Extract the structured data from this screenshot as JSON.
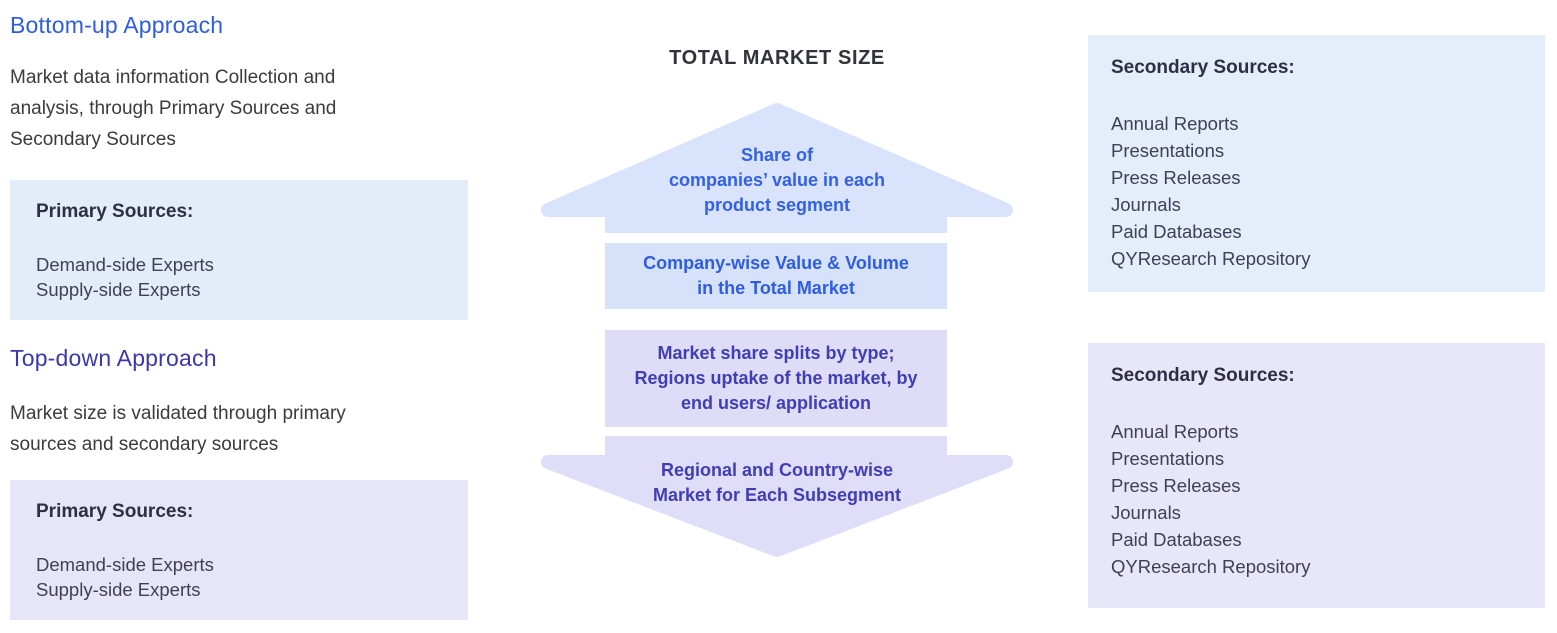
{
  "left_panel": {
    "sections": [
      {
        "heading": "Bottom-up Approach",
        "description_lines": [
          "Market data information Collection and",
          "analysis, through Primary Sources and",
          "Secondary Sources"
        ],
        "box": {
          "heading": "Primary Sources:",
          "items": [
            "Demand-side Experts",
            "Supply-side Experts"
          ]
        }
      },
      {
        "heading": "Top-down Approach",
        "description_lines": [
          "Market size is validated through primary",
          "sources and secondary sources"
        ],
        "box": {
          "heading": "Primary Sources:",
          "items": [
            "Demand-side Experts",
            "Supply-side Experts"
          ]
        }
      }
    ]
  },
  "center_diagram": {
    "title": "TOTAL MARKET SIZE",
    "steps": [
      {
        "shape": "arrow-up",
        "lines": [
          "Share of",
          "companies’ value in each",
          "product segment"
        ]
      },
      {
        "shape": "box",
        "lines": [
          "Company-wise Value & Volume",
          "in the Total Market"
        ]
      },
      {
        "shape": "box",
        "lines": [
          "Market share splits by type;",
          "Regions uptake of the market, by",
          "end users/ application"
        ]
      },
      {
        "shape": "arrow-down",
        "lines": [
          "Regional and Country-wise",
          "Market for Each Subsegment"
        ]
      }
    ]
  },
  "right_panel": {
    "boxes": [
      {
        "heading": "Secondary Sources:",
        "items": [
          "Annual Reports",
          "Presentations",
          "Press Releases",
          "Journals",
          "Paid Databases",
          "QYResearch Repository"
        ]
      },
      {
        "heading": "Secondary Sources:",
        "items": [
          "Annual Reports",
          "Presentations",
          "Press Releases",
          "Journals",
          "Paid Databases",
          "QYResearch Repository"
        ]
      }
    ]
  },
  "colors": {
    "bottom_up_heading": "#2f5de2",
    "top_down_heading": "#3b37ae",
    "body_text": "#3b3b3b",
    "panel_heading_text": "#2e2e45",
    "panel_item_text": "#3f3f55",
    "left_blue_panel_bg": "#e3ecf9",
    "left_lavender_panel_bg": "#e7e5f8",
    "right_blue_panel_bg": "#e4edfa",
    "right_lavender_panel_bg": "#e8e6f9",
    "arrow_up_fill": "#d9e3fb",
    "arrow_down_fill": "#dfddf8",
    "step_blue_box_bg": "#d6e2fa",
    "step_lavender_box_bg": "#dedcf6",
    "step_blue_text": "#2e5ce2",
    "step_indigo_text": "#413db4",
    "diagram_title_text": "#32323a"
  }
}
